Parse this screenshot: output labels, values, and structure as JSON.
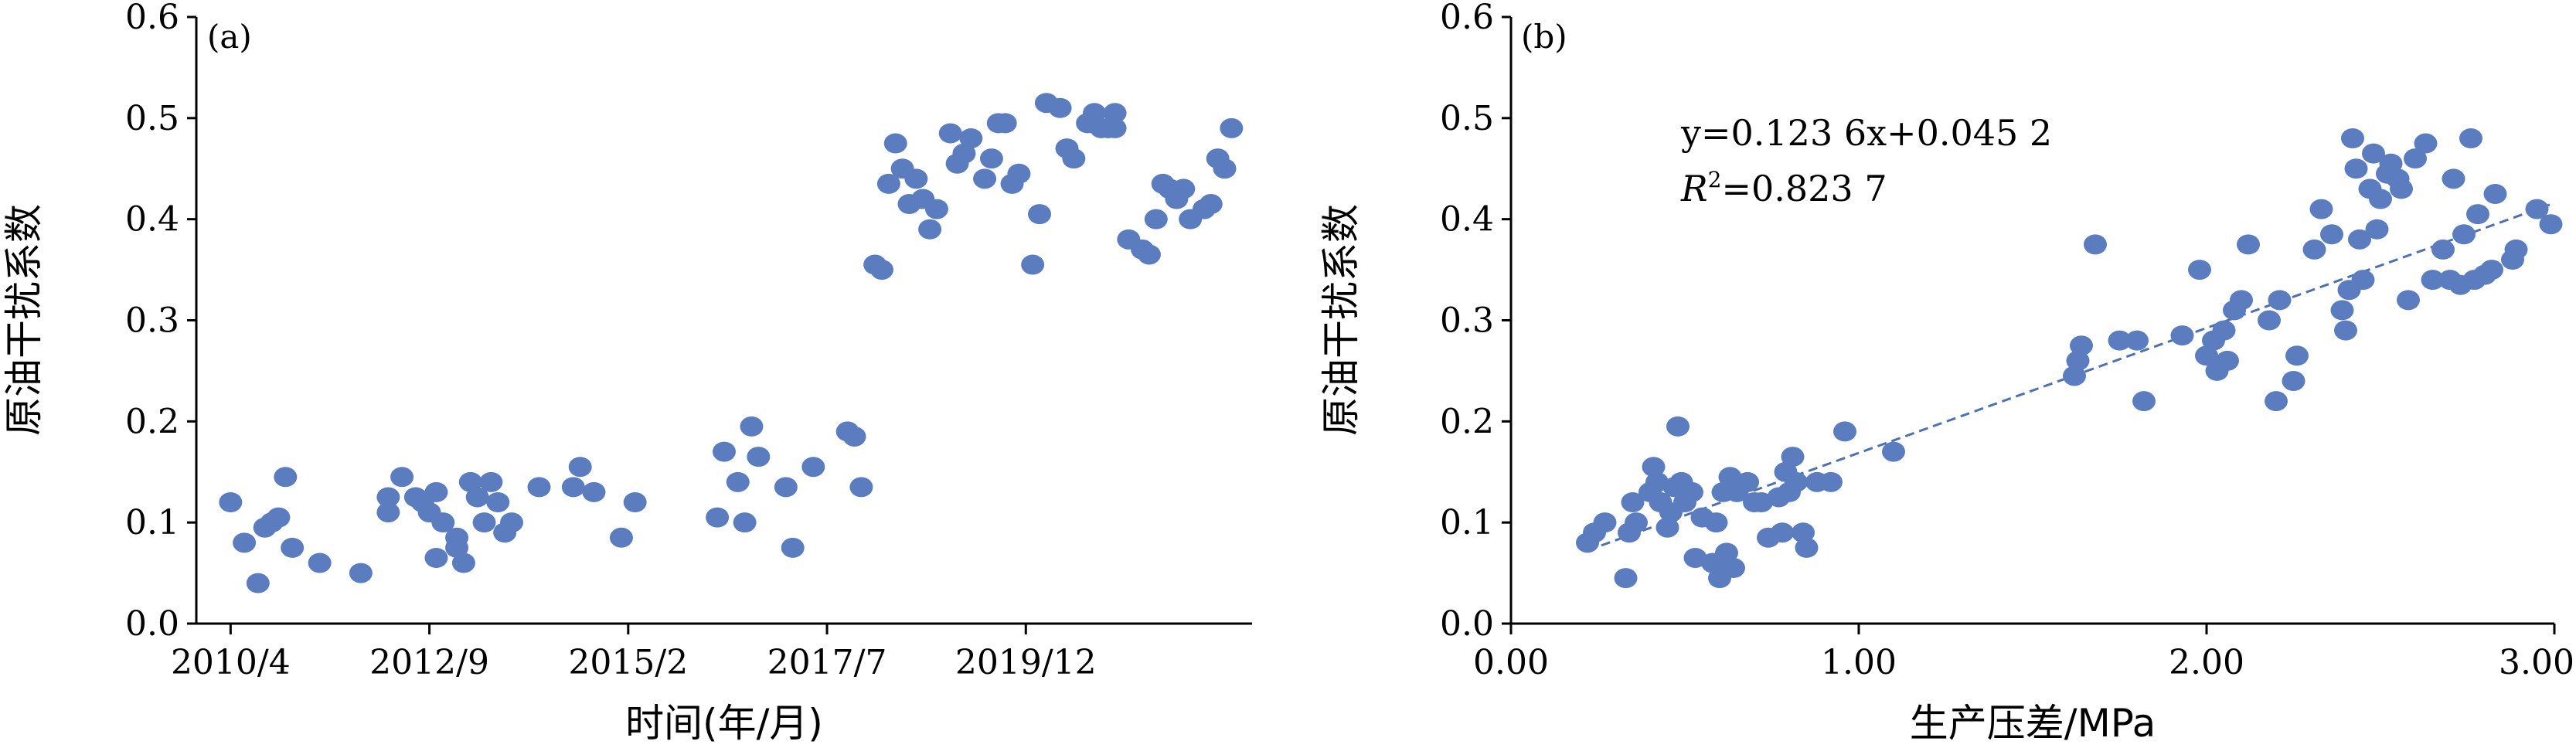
{
  "chart_data": [
    {
      "type": "scatter",
      "panel_label": "(a)",
      "xlabel": "时间(年/月)",
      "ylabel": "原油干扰系数",
      "x_ticks": [
        "2010/4",
        "2012/9",
        "2015/2",
        "2017/7",
        "2019/12"
      ],
      "y_ticks": [
        "0.0",
        "0.1",
        "0.2",
        "0.3",
        "0.4",
        "0.5",
        "0.6"
      ],
      "ylim": [
        0,
        0.6
      ],
      "grid": false,
      "points": [
        {
          "x": "2010/04",
          "y": 0.12
        },
        {
          "x": "2010/06",
          "y": 0.08
        },
        {
          "x": "2010/08",
          "y": 0.04
        },
        {
          "x": "2010/09",
          "y": 0.095
        },
        {
          "x": "2010/10",
          "y": 0.1
        },
        {
          "x": "2010/11",
          "y": 0.105
        },
        {
          "x": "2010/12",
          "y": 0.145
        },
        {
          "x": "2011/01",
          "y": 0.075
        },
        {
          "x": "2011/05",
          "y": 0.06
        },
        {
          "x": "2011/11",
          "y": 0.05
        },
        {
          "x": "2012/03",
          "y": 0.11
        },
        {
          "x": "2012/03",
          "y": 0.125
        },
        {
          "x": "2012/05",
          "y": 0.145
        },
        {
          "x": "2012/07",
          "y": 0.125
        },
        {
          "x": "2012/08",
          "y": 0.12
        },
        {
          "x": "2012/09",
          "y": 0.11
        },
        {
          "x": "2012/10",
          "y": 0.13
        },
        {
          "x": "2012/10",
          "y": 0.065
        },
        {
          "x": "2012/11",
          "y": 0.1
        },
        {
          "x": "2013/01",
          "y": 0.085
        },
        {
          "x": "2013/01",
          "y": 0.075
        },
        {
          "x": "2013/02",
          "y": 0.06
        },
        {
          "x": "2013/03",
          "y": 0.14
        },
        {
          "x": "2013/04",
          "y": 0.125
        },
        {
          "x": "2013/05",
          "y": 0.1
        },
        {
          "x": "2013/06",
          "y": 0.14
        },
        {
          "x": "2013/07",
          "y": 0.12
        },
        {
          "x": "2013/08",
          "y": 0.09
        },
        {
          "x": "2013/09",
          "y": 0.1
        },
        {
          "x": "2014/01",
          "y": 0.135
        },
        {
          "x": "2014/06",
          "y": 0.135
        },
        {
          "x": "2014/07",
          "y": 0.155
        },
        {
          "x": "2014/09",
          "y": 0.13
        },
        {
          "x": "2015/01",
          "y": 0.085
        },
        {
          "x": "2015/03",
          "y": 0.12
        },
        {
          "x": "2016/03",
          "y": 0.105
        },
        {
          "x": "2016/04",
          "y": 0.17
        },
        {
          "x": "2016/06",
          "y": 0.14
        },
        {
          "x": "2016/07",
          "y": 0.1
        },
        {
          "x": "2016/08",
          "y": 0.195
        },
        {
          "x": "2016/09",
          "y": 0.165
        },
        {
          "x": "2017/01",
          "y": 0.135
        },
        {
          "x": "2017/02",
          "y": 0.075
        },
        {
          "x": "2017/05",
          "y": 0.155
        },
        {
          "x": "2017/10",
          "y": 0.19
        },
        {
          "x": "2017/11",
          "y": 0.185
        },
        {
          "x": "2017/12",
          "y": 0.135
        },
        {
          "x": "2018/02",
          "y": 0.355
        },
        {
          "x": "2018/03",
          "y": 0.35
        },
        {
          "x": "2018/04",
          "y": 0.435
        },
        {
          "x": "2018/05",
          "y": 0.475
        },
        {
          "x": "2018/06",
          "y": 0.45
        },
        {
          "x": "2018/07",
          "y": 0.415
        },
        {
          "x": "2018/08",
          "y": 0.44
        },
        {
          "x": "2018/09",
          "y": 0.42
        },
        {
          "x": "2018/10",
          "y": 0.39
        },
        {
          "x": "2018/11",
          "y": 0.41
        },
        {
          "x": "2019/01",
          "y": 0.485
        },
        {
          "x": "2019/02",
          "y": 0.455
        },
        {
          "x": "2019/03",
          "y": 0.465
        },
        {
          "x": "2019/04",
          "y": 0.48
        },
        {
          "x": "2019/06",
          "y": 0.44
        },
        {
          "x": "2019/07",
          "y": 0.46
        },
        {
          "x": "2019/08",
          "y": 0.495
        },
        {
          "x": "2019/09",
          "y": 0.495
        },
        {
          "x": "2019/10",
          "y": 0.435
        },
        {
          "x": "2019/11",
          "y": 0.445
        },
        {
          "x": "2020/01",
          "y": 0.355
        },
        {
          "x": "2020/02",
          "y": 0.405
        },
        {
          "x": "2020/03",
          "y": 0.515
        },
        {
          "x": "2020/05",
          "y": 0.51
        },
        {
          "x": "2020/06",
          "y": 0.47
        },
        {
          "x": "2020/07",
          "y": 0.46
        },
        {
          "x": "2020/09",
          "y": 0.495
        },
        {
          "x": "2020/10",
          "y": 0.505
        },
        {
          "x": "2020/11",
          "y": 0.49
        },
        {
          "x": "2020/12",
          "y": 0.49
        },
        {
          "x": "2021/01",
          "y": 0.505
        },
        {
          "x": "2021/01",
          "y": 0.49
        },
        {
          "x": "2021/03",
          "y": 0.38
        },
        {
          "x": "2021/05",
          "y": 0.37
        },
        {
          "x": "2021/06",
          "y": 0.365
        },
        {
          "x": "2021/07",
          "y": 0.4
        },
        {
          "x": "2021/08",
          "y": 0.435
        },
        {
          "x": "2021/09",
          "y": 0.43
        },
        {
          "x": "2021/10",
          "y": 0.42
        },
        {
          "x": "2021/11",
          "y": 0.43
        },
        {
          "x": "2021/12",
          "y": 0.4
        },
        {
          "x": "2022/02",
          "y": 0.41
        },
        {
          "x": "2022/03",
          "y": 0.415
        },
        {
          "x": "2022/04",
          "y": 0.46
        },
        {
          "x": "2022/05",
          "y": 0.45
        },
        {
          "x": "2022/06",
          "y": 0.49
        }
      ]
    },
    {
      "type": "scatter",
      "panel_label": "(b)",
      "xlabel": "生产压差/MPa",
      "ylabel": "原油干扰系数",
      "x_ticks": [
        "0.00",
        "1.00",
        "2.00",
        "3.00"
      ],
      "y_ticks": [
        "0.0",
        "0.1",
        "0.2",
        "0.3",
        "0.4",
        "0.5",
        "0.6"
      ],
      "xlim": [
        0,
        3
      ],
      "ylim": [
        0,
        0.6
      ],
      "grid": false,
      "fit": {
        "slope": 0.1236,
        "intercept": 0.0452,
        "x_range": [
          0.22,
          3.0
        ]
      },
      "equation_text": "y=0.123 6x+0.045 2",
      "r2_label": "R",
      "r2_sup": "2",
      "r2_value": "=0.823 7",
      "points": [
        {
          "x": 0.22,
          "y": 0.08
        },
        {
          "x": 0.24,
          "y": 0.09
        },
        {
          "x": 0.27,
          "y": 0.1
        },
        {
          "x": 0.33,
          "y": 0.045
        },
        {
          "x": 0.34,
          "y": 0.09
        },
        {
          "x": 0.35,
          "y": 0.12
        },
        {
          "x": 0.36,
          "y": 0.1
        },
        {
          "x": 0.4,
          "y": 0.13
        },
        {
          "x": 0.41,
          "y": 0.155
        },
        {
          "x": 0.42,
          "y": 0.14
        },
        {
          "x": 0.43,
          "y": 0.12
        },
        {
          "x": 0.45,
          "y": 0.095
        },
        {
          "x": 0.46,
          "y": 0.11
        },
        {
          "x": 0.47,
          "y": 0.135
        },
        {
          "x": 0.48,
          "y": 0.195
        },
        {
          "x": 0.49,
          "y": 0.14
        },
        {
          "x": 0.5,
          "y": 0.12
        },
        {
          "x": 0.52,
          "y": 0.13
        },
        {
          "x": 0.53,
          "y": 0.065
        },
        {
          "x": 0.55,
          "y": 0.105
        },
        {
          "x": 0.58,
          "y": 0.06
        },
        {
          "x": 0.59,
          "y": 0.1
        },
        {
          "x": 0.6,
          "y": 0.045
        },
        {
          "x": 0.61,
          "y": 0.13
        },
        {
          "x": 0.62,
          "y": 0.07
        },
        {
          "x": 0.63,
          "y": 0.145
        },
        {
          "x": 0.64,
          "y": 0.055
        },
        {
          "x": 0.65,
          "y": 0.13
        },
        {
          "x": 0.68,
          "y": 0.14
        },
        {
          "x": 0.7,
          "y": 0.12
        },
        {
          "x": 0.72,
          "y": 0.12
        },
        {
          "x": 0.74,
          "y": 0.085
        },
        {
          "x": 0.77,
          "y": 0.125
        },
        {
          "x": 0.78,
          "y": 0.09
        },
        {
          "x": 0.79,
          "y": 0.15
        },
        {
          "x": 0.8,
          "y": 0.13
        },
        {
          "x": 0.81,
          "y": 0.165
        },
        {
          "x": 0.82,
          "y": 0.14
        },
        {
          "x": 0.84,
          "y": 0.09
        },
        {
          "x": 0.85,
          "y": 0.075
        },
        {
          "x": 0.88,
          "y": 0.14
        },
        {
          "x": 0.92,
          "y": 0.14
        },
        {
          "x": 0.96,
          "y": 0.19
        },
        {
          "x": 1.1,
          "y": 0.17
        },
        {
          "x": 1.62,
          "y": 0.245
        },
        {
          "x": 1.63,
          "y": 0.26
        },
        {
          "x": 1.64,
          "y": 0.275
        },
        {
          "x": 1.68,
          "y": 0.375
        },
        {
          "x": 1.75,
          "y": 0.28
        },
        {
          "x": 1.8,
          "y": 0.28
        },
        {
          "x": 1.82,
          "y": 0.22
        },
        {
          "x": 1.93,
          "y": 0.285
        },
        {
          "x": 1.98,
          "y": 0.35
        },
        {
          "x": 2.0,
          "y": 0.265
        },
        {
          "x": 2.02,
          "y": 0.28
        },
        {
          "x": 2.03,
          "y": 0.25
        },
        {
          "x": 2.05,
          "y": 0.29
        },
        {
          "x": 2.06,
          "y": 0.26
        },
        {
          "x": 2.08,
          "y": 0.31
        },
        {
          "x": 2.1,
          "y": 0.32
        },
        {
          "x": 2.12,
          "y": 0.375
        },
        {
          "x": 2.18,
          "y": 0.3
        },
        {
          "x": 2.2,
          "y": 0.22
        },
        {
          "x": 2.21,
          "y": 0.32
        },
        {
          "x": 2.25,
          "y": 0.24
        },
        {
          "x": 2.26,
          "y": 0.265
        },
        {
          "x": 2.31,
          "y": 0.37
        },
        {
          "x": 2.33,
          "y": 0.41
        },
        {
          "x": 2.36,
          "y": 0.385
        },
        {
          "x": 2.39,
          "y": 0.31
        },
        {
          "x": 2.4,
          "y": 0.29
        },
        {
          "x": 2.41,
          "y": 0.33
        },
        {
          "x": 2.42,
          "y": 0.48
        },
        {
          "x": 2.43,
          "y": 0.45
        },
        {
          "x": 2.44,
          "y": 0.38
        },
        {
          "x": 2.45,
          "y": 0.34
        },
        {
          "x": 2.47,
          "y": 0.43
        },
        {
          "x": 2.48,
          "y": 0.465
        },
        {
          "x": 2.49,
          "y": 0.39
        },
        {
          "x": 2.5,
          "y": 0.42
        },
        {
          "x": 2.52,
          "y": 0.445
        },
        {
          "x": 2.53,
          "y": 0.455
        },
        {
          "x": 2.55,
          "y": 0.44
        },
        {
          "x": 2.56,
          "y": 0.43
        },
        {
          "x": 2.58,
          "y": 0.32
        },
        {
          "x": 2.6,
          "y": 0.46
        },
        {
          "x": 2.63,
          "y": 0.475
        },
        {
          "x": 2.65,
          "y": 0.34
        },
        {
          "x": 2.68,
          "y": 0.37
        },
        {
          "x": 2.7,
          "y": 0.34
        },
        {
          "x": 2.71,
          "y": 0.44
        },
        {
          "x": 2.73,
          "y": 0.335
        },
        {
          "x": 2.74,
          "y": 0.385
        },
        {
          "x": 2.76,
          "y": 0.48
        },
        {
          "x": 2.77,
          "y": 0.34
        },
        {
          "x": 2.78,
          "y": 0.405
        },
        {
          "x": 2.8,
          "y": 0.345
        },
        {
          "x": 2.82,
          "y": 0.35
        },
        {
          "x": 2.83,
          "y": 0.425
        },
        {
          "x": 2.88,
          "y": 0.36
        },
        {
          "x": 2.89,
          "y": 0.37
        },
        {
          "x": 2.95,
          "y": 0.41
        },
        {
          "x": 2.99,
          "y": 0.395
        }
      ]
    }
  ]
}
